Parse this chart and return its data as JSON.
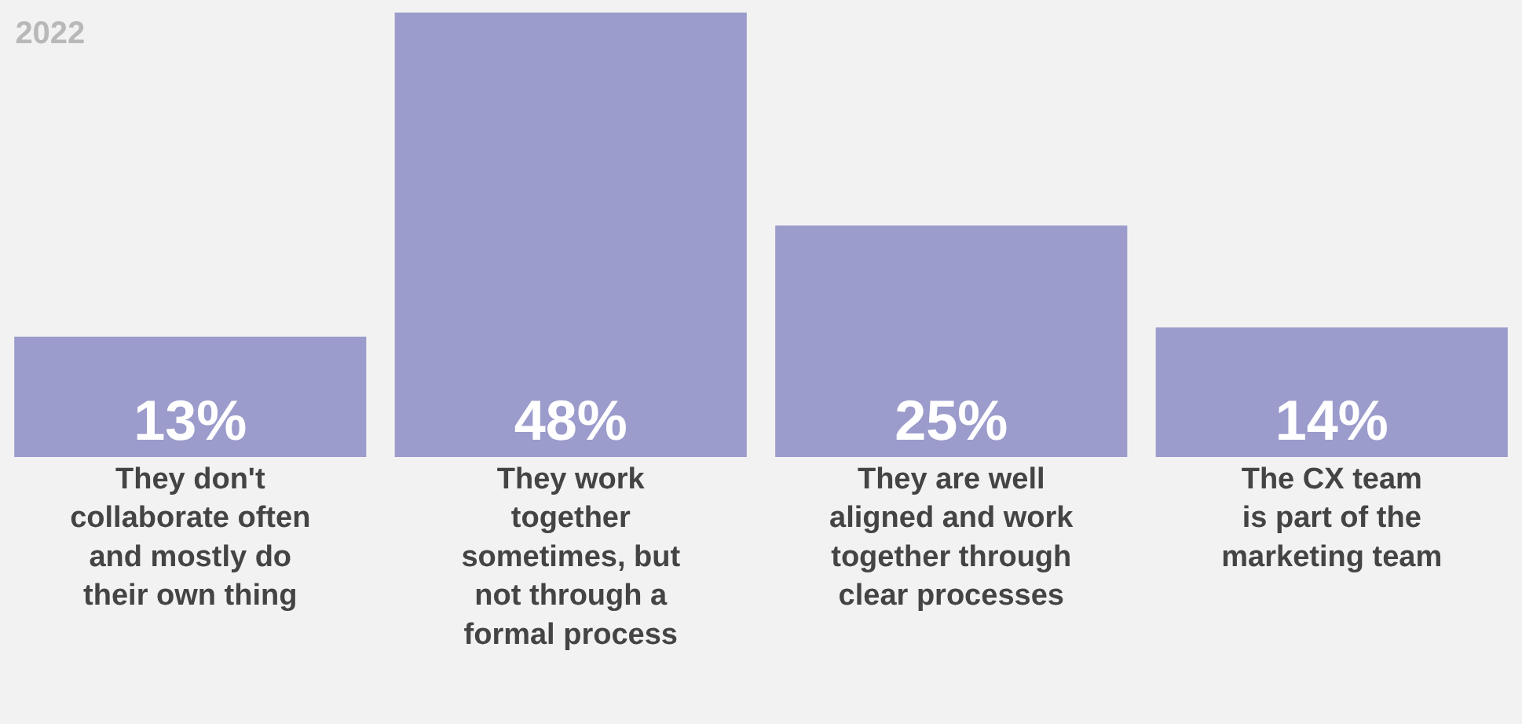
{
  "chart_data": {
    "type": "bar",
    "title": "2022",
    "categories": [
      "They don't\ncollaborate often\nand mostly do\ntheir own thing",
      "They work\ntogether\nsometimes, but\nnot through a\nformal process",
      "They are well\naligned and work\ntogether through\nclear processes",
      "The CX team\nis part of the\nmarketing team"
    ],
    "values": [
      13,
      48,
      25,
      14
    ],
    "value_labels": [
      "13%",
      "48%",
      "25%",
      "14%"
    ],
    "color": "#9b9bcc",
    "ylim": [
      0,
      48
    ],
    "tick_labels": "x",
    "grid": false,
    "legend": false
  }
}
